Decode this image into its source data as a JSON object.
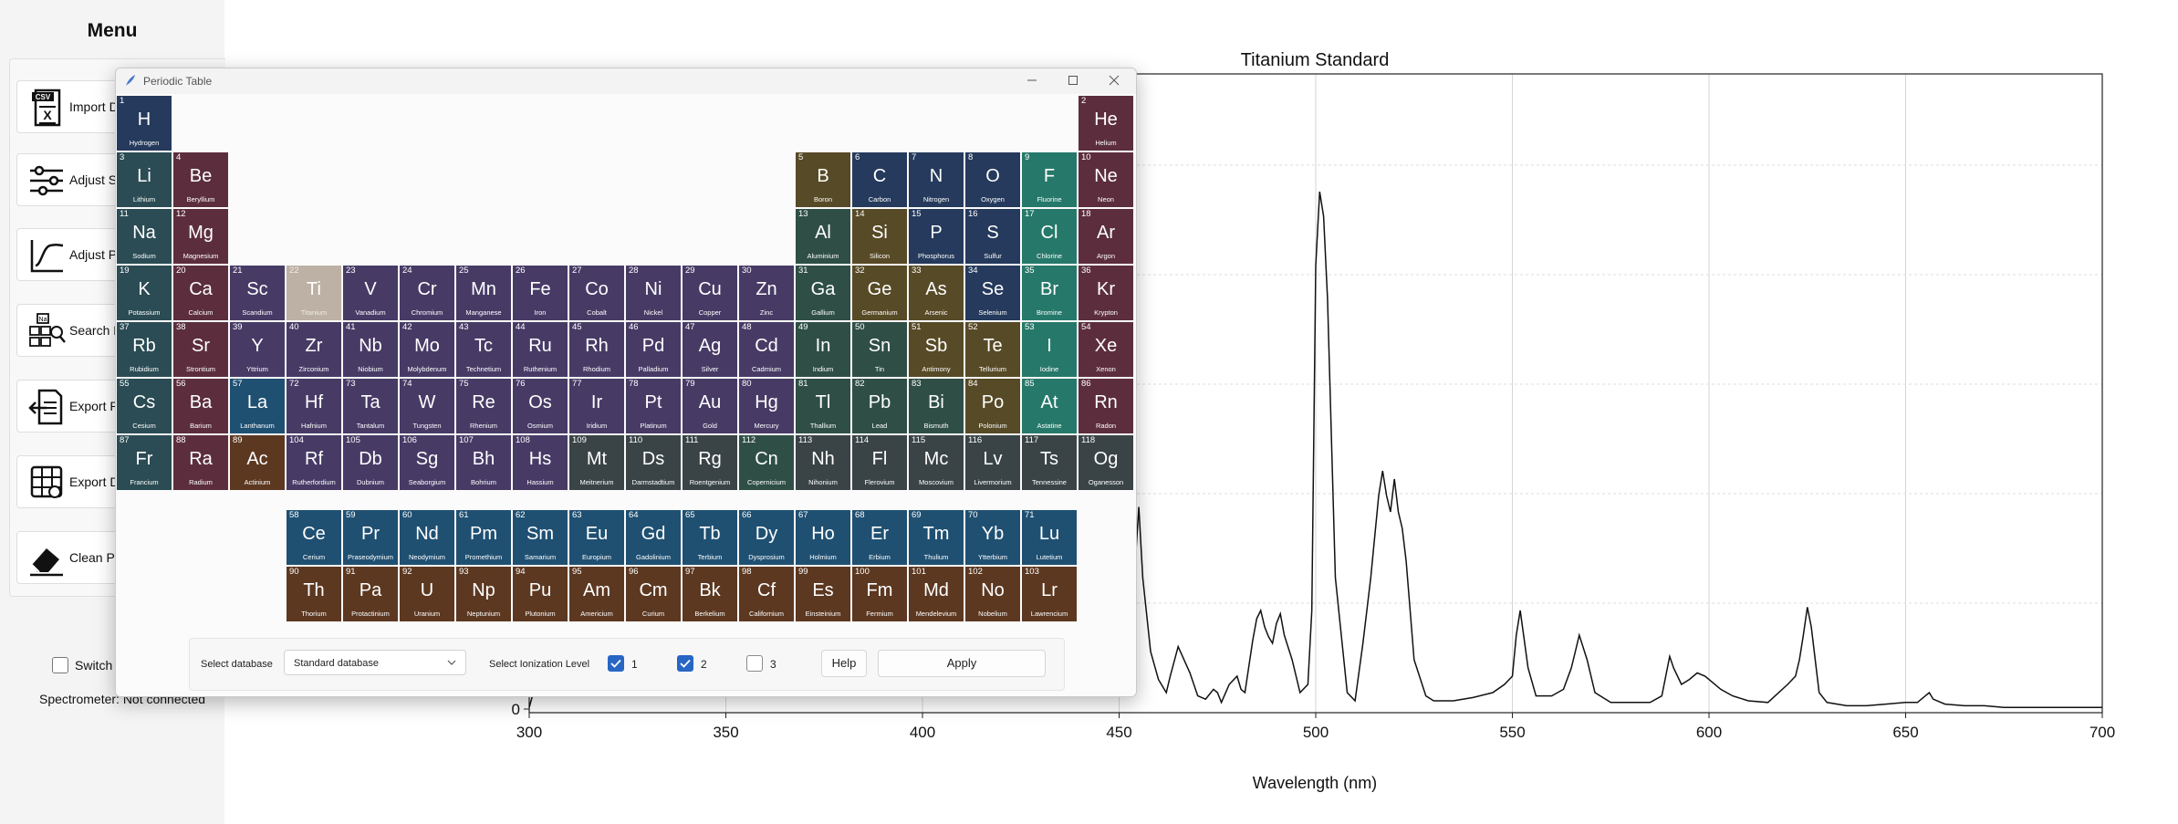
{
  "sidebar": {
    "title": "Menu",
    "buttons": [
      {
        "label": "Import Data",
        "icon": "csv-file-icon"
      },
      {
        "label": "Adjust Settings",
        "icon": "sliders-icon"
      },
      {
        "label": "Adjust Plot",
        "icon": "curve-icon"
      },
      {
        "label": "Search Elements",
        "icon": "element-search-icon"
      },
      {
        "label": "Export Plot",
        "icon": "export-document-icon"
      },
      {
        "label": "Export Data",
        "icon": "export-table-icon"
      },
      {
        "label": "Clean Plot",
        "icon": "eraser-icon"
      }
    ],
    "switch_label": "Switch theme",
    "switch_checked": false,
    "status": "Spectrometer: Not connected"
  },
  "chart_data": {
    "type": "line",
    "title": "Titanium Standard",
    "xlabel": "Wavelength (nm)",
    "ylabel": "",
    "xlim": [
      300,
      700
    ],
    "x_ticks": [
      300,
      350,
      400,
      450,
      500,
      550,
      600,
      650,
      700
    ],
    "y_ticks": [
      0
    ],
    "grid": true,
    "series": [
      {
        "x": [
          300,
          302,
          303,
          305,
          310,
          313,
          315,
          318,
          320,
          322,
          325,
          330,
          335,
          336,
          338,
          340,
          345,
          350,
          355,
          360,
          365,
          370,
          375,
          380,
          385,
          390,
          395,
          400,
          405,
          410,
          415,
          420,
          425,
          430,
          435,
          440,
          445,
          450,
          452,
          453,
          454,
          455,
          456,
          458,
          460,
          462,
          463,
          465,
          468,
          470,
          472,
          474,
          475,
          476,
          478,
          480,
          481,
          482,
          484,
          485,
          486,
          487,
          488,
          489,
          490,
          491,
          492,
          494,
          496,
          498,
          499,
          500,
          501,
          502,
          503,
          505,
          508,
          510,
          512,
          514,
          516,
          517,
          518,
          519,
          520,
          521,
          522,
          523,
          525,
          528,
          530,
          535,
          540,
          545,
          548,
          550,
          551,
          552,
          554,
          556,
          560,
          563,
          565,
          566,
          567,
          569,
          571,
          575,
          580,
          585,
          588,
          589,
          590,
          591,
          593,
          595,
          597,
          599,
          601,
          603,
          606,
          610,
          615,
          620,
          622,
          623,
          624,
          625,
          626,
          627,
          628,
          630,
          635,
          640,
          645,
          650,
          653,
          655,
          656,
          657,
          660,
          665,
          670,
          675,
          680,
          690,
          700
        ],
        "y": [
          1,
          18,
          22,
          20,
          21,
          25,
          12,
          20,
          24,
          16,
          19,
          21,
          22,
          14,
          23,
          20,
          14,
          18,
          22,
          24,
          23,
          12,
          20,
          23,
          21,
          19,
          18,
          21,
          25,
          22,
          16,
          19,
          24,
          21,
          18,
          22,
          19,
          25,
          32,
          50,
          85,
          123,
          80,
          35,
          18,
          10,
          20,
          38,
          22,
          8,
          6,
          12,
          10,
          4,
          15,
          20,
          12,
          10,
          42,
          55,
          60,
          50,
          44,
          40,
          52,
          58,
          45,
          30,
          10,
          15,
          60,
          270,
          315,
          300,
          250,
          80,
          10,
          5,
          40,
          80,
          130,
          145,
          130,
          120,
          140,
          120,
          110,
          90,
          30,
          8,
          5,
          5,
          7,
          10,
          15,
          20,
          45,
          60,
          25,
          8,
          8,
          12,
          25,
          35,
          45,
          30,
          10,
          4,
          4,
          4,
          8,
          20,
          32,
          25,
          15,
          18,
          22,
          20,
          16,
          12,
          8,
          5,
          4,
          15,
          20,
          30,
          45,
          62,
          50,
          30,
          10,
          4,
          2,
          2,
          3,
          4,
          4,
          8,
          10,
          6,
          3,
          2,
          2,
          1,
          1,
          1,
          1
        ]
      }
    ]
  },
  "periodic_window": {
    "title": "Periodic Table",
    "controls": {
      "db_label": "Select database",
      "db_value": "Standard database",
      "ion_label": "Select Ionization Level",
      "levels": [
        {
          "label": "1",
          "checked": true
        },
        {
          "label": "2",
          "checked": true
        },
        {
          "label": "3",
          "checked": false
        }
      ],
      "help_label": "Help",
      "apply_label": "Apply"
    },
    "colors": {
      "nonmetal": "#253a5c",
      "noble": "#5c2e3d",
      "alkali": "#2b4c54",
      "alkaline": "#5c2e3d",
      "transition": "#473b66",
      "post_transition": "#2f4f46",
      "metalloid": "#574a26",
      "halogen": "#26796a",
      "lanthanide": "#1f5072",
      "actinide": "#5c3821",
      "unknown": "#3a4446",
      "selected": "#bcb1a4"
    },
    "selected_element": "Ti",
    "elements": [
      {
        "n": 1,
        "s": "H",
        "name": "Hydrogen",
        "c": "nonmetal"
      },
      {
        "n": 2,
        "s": "He",
        "name": "Helium",
        "c": "noble"
      },
      {
        "n": 3,
        "s": "Li",
        "name": "Lithium",
        "c": "alkali"
      },
      {
        "n": 4,
        "s": "Be",
        "name": "Beryllium",
        "c": "alkaline"
      },
      {
        "n": 5,
        "s": "B",
        "name": "Boron",
        "c": "metalloid"
      },
      {
        "n": 6,
        "s": "C",
        "name": "Carbon",
        "c": "nonmetal"
      },
      {
        "n": 7,
        "s": "N",
        "name": "Nitrogen",
        "c": "nonmetal"
      },
      {
        "n": 8,
        "s": "O",
        "name": "Oxygen",
        "c": "nonmetal"
      },
      {
        "n": 9,
        "s": "F",
        "name": "Fluorine",
        "c": "halogen"
      },
      {
        "n": 10,
        "s": "Ne",
        "name": "Neon",
        "c": "noble"
      },
      {
        "n": 11,
        "s": "Na",
        "name": "Sodium",
        "c": "alkali"
      },
      {
        "n": 12,
        "s": "Mg",
        "name": "Magnesium",
        "c": "alkaline"
      },
      {
        "n": 13,
        "s": "Al",
        "name": "Aluminium",
        "c": "post_transition"
      },
      {
        "n": 14,
        "s": "Si",
        "name": "Silicon",
        "c": "metalloid"
      },
      {
        "n": 15,
        "s": "P",
        "name": "Phosphorus",
        "c": "nonmetal"
      },
      {
        "n": 16,
        "s": "S",
        "name": "Sulfur",
        "c": "nonmetal"
      },
      {
        "n": 17,
        "s": "Cl",
        "name": "Chlorine",
        "c": "halogen"
      },
      {
        "n": 18,
        "s": "Ar",
        "name": "Argon",
        "c": "noble"
      },
      {
        "n": 19,
        "s": "K",
        "name": "Potassium",
        "c": "alkali"
      },
      {
        "n": 20,
        "s": "Ca",
        "name": "Calcium",
        "c": "alkaline"
      },
      {
        "n": 21,
        "s": "Sc",
        "name": "Scandium",
        "c": "transition"
      },
      {
        "n": 22,
        "s": "Ti",
        "name": "Titanium",
        "c": "transition"
      },
      {
        "n": 23,
        "s": "V",
        "name": "Vanadium",
        "c": "transition"
      },
      {
        "n": 24,
        "s": "Cr",
        "name": "Chromium",
        "c": "transition"
      },
      {
        "n": 25,
        "s": "Mn",
        "name": "Manganese",
        "c": "transition"
      },
      {
        "n": 26,
        "s": "Fe",
        "name": "Iron",
        "c": "transition"
      },
      {
        "n": 27,
        "s": "Co",
        "name": "Cobalt",
        "c": "transition"
      },
      {
        "n": 28,
        "s": "Ni",
        "name": "Nickel",
        "c": "transition"
      },
      {
        "n": 29,
        "s": "Cu",
        "name": "Copper",
        "c": "transition"
      },
      {
        "n": 30,
        "s": "Zn",
        "name": "Zinc",
        "c": "transition"
      },
      {
        "n": 31,
        "s": "Ga",
        "name": "Gallium",
        "c": "post_transition"
      },
      {
        "n": 32,
        "s": "Ge",
        "name": "Germanium",
        "c": "metalloid"
      },
      {
        "n": 33,
        "s": "As",
        "name": "Arsenic",
        "c": "metalloid"
      },
      {
        "n": 34,
        "s": "Se",
        "name": "Selenium",
        "c": "nonmetal"
      },
      {
        "n": 35,
        "s": "Br",
        "name": "Bromine",
        "c": "halogen"
      },
      {
        "n": 36,
        "s": "Kr",
        "name": "Krypton",
        "c": "noble"
      },
      {
        "n": 37,
        "s": "Rb",
        "name": "Rubidium",
        "c": "alkali"
      },
      {
        "n": 38,
        "s": "Sr",
        "name": "Strontium",
        "c": "alkaline"
      },
      {
        "n": 39,
        "s": "Y",
        "name": "Yttrium",
        "c": "transition"
      },
      {
        "n": 40,
        "s": "Zr",
        "name": "Zirconium",
        "c": "transition"
      },
      {
        "n": 41,
        "s": "Nb",
        "name": "Niobium",
        "c": "transition"
      },
      {
        "n": 42,
        "s": "Mo",
        "name": "Molybdenum",
        "c": "transition"
      },
      {
        "n": 43,
        "s": "Tc",
        "name": "Technetium",
        "c": "transition"
      },
      {
        "n": 44,
        "s": "Ru",
        "name": "Ruthenium",
        "c": "transition"
      },
      {
        "n": 45,
        "s": "Rh",
        "name": "Rhodium",
        "c": "transition"
      },
      {
        "n": 46,
        "s": "Pd",
        "name": "Palladium",
        "c": "transition"
      },
      {
        "n": 47,
        "s": "Ag",
        "name": "Silver",
        "c": "transition"
      },
      {
        "n": 48,
        "s": "Cd",
        "name": "Cadmium",
        "c": "transition"
      },
      {
        "n": 49,
        "s": "In",
        "name": "Indium",
        "c": "post_transition"
      },
      {
        "n": 50,
        "s": "Sn",
        "name": "Tin",
        "c": "post_transition"
      },
      {
        "n": 51,
        "s": "Sb",
        "name": "Antimony",
        "c": "metalloid"
      },
      {
        "n": 52,
        "s": "Te",
        "name": "Tellurium",
        "c": "metalloid"
      },
      {
        "n": 53,
        "s": "I",
        "name": "Iodine",
        "c": "halogen"
      },
      {
        "n": 54,
        "s": "Xe",
        "name": "Xenon",
        "c": "noble"
      },
      {
        "n": 55,
        "s": "Cs",
        "name": "Cesium",
        "c": "alkali"
      },
      {
        "n": 56,
        "s": "Ba",
        "name": "Barium",
        "c": "alkaline"
      },
      {
        "n": 57,
        "s": "La",
        "name": "Lanthanum",
        "c": "lanthanide"
      },
      {
        "n": 72,
        "s": "Hf",
        "name": "Hafnium",
        "c": "transition"
      },
      {
        "n": 73,
        "s": "Ta",
        "name": "Tantalum",
        "c": "transition"
      },
      {
        "n": 74,
        "s": "W",
        "name": "Tungsten",
        "c": "transition"
      },
      {
        "n": 75,
        "s": "Re",
        "name": "Rhenium",
        "c": "transition"
      },
      {
        "n": 76,
        "s": "Os",
        "name": "Osmium",
        "c": "transition"
      },
      {
        "n": 77,
        "s": "Ir",
        "name": "Iridium",
        "c": "transition"
      },
      {
        "n": 78,
        "s": "Pt",
        "name": "Platinum",
        "c": "transition"
      },
      {
        "n": 79,
        "s": "Au",
        "name": "Gold",
        "c": "transition"
      },
      {
        "n": 80,
        "s": "Hg",
        "name": "Mercury",
        "c": "transition"
      },
      {
        "n": 81,
        "s": "Tl",
        "name": "Thallium",
        "c": "post_transition"
      },
      {
        "n": 82,
        "s": "Pb",
        "name": "Lead",
        "c": "post_transition"
      },
      {
        "n": 83,
        "s": "Bi",
        "name": "Bismuth",
        "c": "post_transition"
      },
      {
        "n": 84,
        "s": "Po",
        "name": "Polonium",
        "c": "metalloid"
      },
      {
        "n": 85,
        "s": "At",
        "name": "Astatine",
        "c": "halogen"
      },
      {
        "n": 86,
        "s": "Rn",
        "name": "Radon",
        "c": "noble"
      },
      {
        "n": 87,
        "s": "Fr",
        "name": "Francium",
        "c": "alkali"
      },
      {
        "n": 88,
        "s": "Ra",
        "name": "Radium",
        "c": "alkaline"
      },
      {
        "n": 89,
        "s": "Ac",
        "name": "Actinium",
        "c": "actinide"
      },
      {
        "n": 104,
        "s": "Rf",
        "name": "Rutherfordium",
        "c": "transition"
      },
      {
        "n": 105,
        "s": "Db",
        "name": "Dubnium",
        "c": "transition"
      },
      {
        "n": 106,
        "s": "Sg",
        "name": "Seaborgium",
        "c": "transition"
      },
      {
        "n": 107,
        "s": "Bh",
        "name": "Bohrium",
        "c": "transition"
      },
      {
        "n": 108,
        "s": "Hs",
        "name": "Hassium",
        "c": "transition"
      },
      {
        "n": 109,
        "s": "Mt",
        "name": "Meitnerium",
        "c": "unknown"
      },
      {
        "n": 110,
        "s": "Ds",
        "name": "Darmstadtium",
        "c": "unknown"
      },
      {
        "n": 111,
        "s": "Rg",
        "name": "Roentgenium",
        "c": "unknown"
      },
      {
        "n": 112,
        "s": "Cn",
        "name": "Copernicium",
        "c": "post_transition"
      },
      {
        "n": 113,
        "s": "Nh",
        "name": "Nihonium",
        "c": "unknown"
      },
      {
        "n": 114,
        "s": "Fl",
        "name": "Flerovium",
        "c": "unknown"
      },
      {
        "n": 115,
        "s": "Mc",
        "name": "Moscovium",
        "c": "unknown"
      },
      {
        "n": 116,
        "s": "Lv",
        "name": "Livermorium",
        "c": "unknown"
      },
      {
        "n": 117,
        "s": "Ts",
        "name": "Tennessine",
        "c": "unknown"
      },
      {
        "n": 118,
        "s": "Og",
        "name": "Oganesson",
        "c": "unknown"
      },
      {
        "n": 58,
        "s": "Ce",
        "name": "Cerium",
        "c": "lanthanide"
      },
      {
        "n": 59,
        "s": "Pr",
        "name": "Praseodymium",
        "c": "lanthanide"
      },
      {
        "n": 60,
        "s": "Nd",
        "name": "Neodymium",
        "c": "lanthanide"
      },
      {
        "n": 61,
        "s": "Pm",
        "name": "Promethium",
        "c": "lanthanide"
      },
      {
        "n": 62,
        "s": "Sm",
        "name": "Samarium",
        "c": "lanthanide"
      },
      {
        "n": 63,
        "s": "Eu",
        "name": "Europium",
        "c": "lanthanide"
      },
      {
        "n": 64,
        "s": "Gd",
        "name": "Gadolinium",
        "c": "lanthanide"
      },
      {
        "n": 65,
        "s": "Tb",
        "name": "Terbium",
        "c": "lanthanide"
      },
      {
        "n": 66,
        "s": "Dy",
        "name": "Dysprosium",
        "c": "lanthanide"
      },
      {
        "n": 67,
        "s": "Ho",
        "name": "Holmium",
        "c": "lanthanide"
      },
      {
        "n": 68,
        "s": "Er",
        "name": "Erbium",
        "c": "lanthanide"
      },
      {
        "n": 69,
        "s": "Tm",
        "name": "Thulium",
        "c": "lanthanide"
      },
      {
        "n": 70,
        "s": "Yb",
        "name": "Ytterbium",
        "c": "lanthanide"
      },
      {
        "n": 71,
        "s": "Lu",
        "name": "Lutetium",
        "c": "lanthanide"
      },
      {
        "n": 90,
        "s": "Th",
        "name": "Thorium",
        "c": "actinide"
      },
      {
        "n": 91,
        "s": "Pa",
        "name": "Protactinium",
        "c": "actinide"
      },
      {
        "n": 92,
        "s": "U",
        "name": "Uranium",
        "c": "actinide"
      },
      {
        "n": 93,
        "s": "Np",
        "name": "Neptunium",
        "c": "actinide"
      },
      {
        "n": 94,
        "s": "Pu",
        "name": "Plutonium",
        "c": "actinide"
      },
      {
        "n": 95,
        "s": "Am",
        "name": "Americium",
        "c": "actinide"
      },
      {
        "n": 96,
        "s": "Cm",
        "name": "Curium",
        "c": "actinide"
      },
      {
        "n": 97,
        "s": "Bk",
        "name": "Berkelium",
        "c": "actinide"
      },
      {
        "n": 98,
        "s": "Cf",
        "name": "Californium",
        "c": "actinide"
      },
      {
        "n": 99,
        "s": "Es",
        "name": "Einsteinium",
        "c": "actinide"
      },
      {
        "n": 100,
        "s": "Fm",
        "name": "Fermium",
        "c": "actinide"
      },
      {
        "n": 101,
        "s": "Md",
        "name": "Mendelevium",
        "c": "actinide"
      },
      {
        "n": 102,
        "s": "No",
        "name": "Nobelium",
        "c": "actinide"
      },
      {
        "n": 103,
        "s": "Lr",
        "name": "Lawrencium",
        "c": "actinide"
      }
    ]
  }
}
